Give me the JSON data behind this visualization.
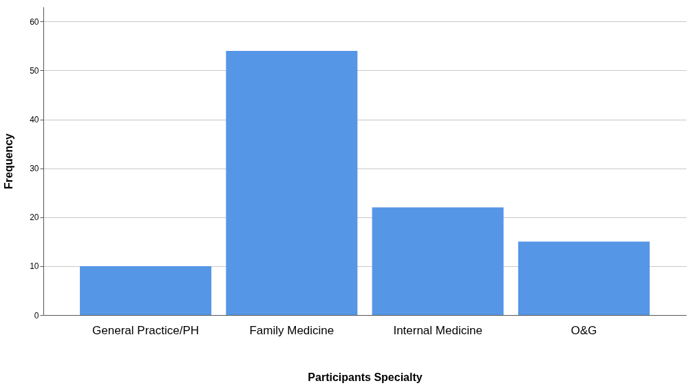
{
  "chart_data": {
    "type": "bar",
    "xlabel": "Participants Specialty",
    "ylabel": "Frequency",
    "categories": [
      "General Practice/PH",
      "Family Medicine",
      "Internal Medicine",
      "O&G"
    ],
    "values": [
      10,
      54,
      22,
      15
    ],
    "color": "#5596e6",
    "ylim": [
      0,
      63
    ],
    "yticks": [
      0,
      10,
      20,
      30,
      40,
      50,
      60
    ],
    "grid": "y"
  }
}
